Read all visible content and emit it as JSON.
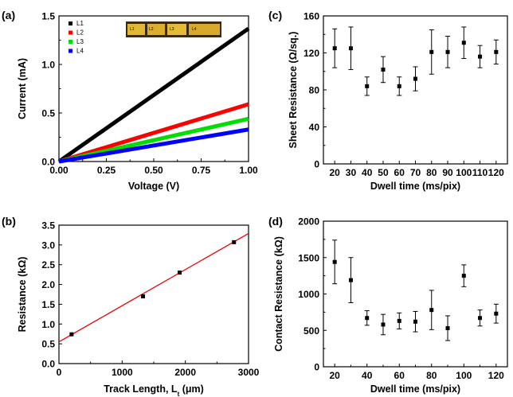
{
  "colors": {
    "L1": "#000000",
    "L2": "#ff0000",
    "L3": "#00dd00",
    "L4": "#0000ff",
    "fit": "#ee0000"
  },
  "panels": {
    "a": "(a)",
    "b": "(b)",
    "c": "(c)",
    "d": "(d)"
  },
  "chart_data": [
    {
      "id": "a",
      "type": "line",
      "xlabel": "Voltage (V)",
      "ylabel": "Current (mA)",
      "xlim": [
        0,
        1
      ],
      "ylim": [
        0,
        1.5
      ],
      "xticks": [
        "0.00",
        "0.25",
        "0.50",
        "0.75",
        "1.00"
      ],
      "yticks": [
        "0.0",
        "0.5",
        "1.0",
        "1.5"
      ],
      "legend_position": "top-left",
      "inset": "photo of four tracks with labels L1, L2, L3, L4",
      "inset_labels": [
        "L1",
        "L2",
        "L3",
        "L4"
      ],
      "series": [
        {
          "name": "L1",
          "x": [
            0,
            1
          ],
          "y": [
            0,
            1.37
          ]
        },
        {
          "name": "L2",
          "x": [
            0,
            1
          ],
          "y": [
            0,
            0.59
          ]
        },
        {
          "name": "L3",
          "x": [
            0,
            1
          ],
          "y": [
            0,
            0.44
          ]
        },
        {
          "name": "L4",
          "x": [
            0,
            1
          ],
          "y": [
            0,
            0.33
          ]
        }
      ]
    },
    {
      "id": "b",
      "type": "scatter",
      "xlabel": "Track Length, L",
      "xlabel_subscript": "t",
      "xlabel_unit": " (μm)",
      "ylabel": "Resistance (kΩ)",
      "xlim": [
        0,
        3000
      ],
      "ylim": [
        0,
        3.5
      ],
      "xticks": [
        "0",
        "1000",
        "2000",
        "3000"
      ],
      "yticks": [
        "0.0",
        "0.5",
        "1.0",
        "1.5",
        "2.0",
        "2.5",
        "3.0",
        "3.5"
      ],
      "points": {
        "x": [
          200,
          1330,
          1910,
          2770
        ],
        "y": [
          0.74,
          1.7,
          2.3,
          3.07
        ]
      },
      "fit": {
        "x": [
          0,
          3000
        ],
        "y": [
          0.55,
          3.29
        ]
      }
    },
    {
      "id": "c",
      "type": "scatter",
      "xlabel": "Dwell time (ms/pix)",
      "ylabel": "Sheet Resistance (Ω/sq.)",
      "xlim": [
        13,
        127
      ],
      "ylim": [
        0,
        160
      ],
      "xticks": [
        "20",
        "30",
        "40",
        "50",
        "60",
        "70",
        "80",
        "90",
        "100",
        "110",
        "120"
      ],
      "yticks": [
        "0",
        "40",
        "80",
        "120",
        "160"
      ],
      "x": [
        20,
        30,
        40,
        50,
        60,
        70,
        80,
        90,
        100,
        110,
        120
      ],
      "y": [
        125,
        125,
        84,
        102,
        84,
        92,
        121,
        121,
        131,
        116,
        121
      ],
      "yerr": [
        21,
        23,
        10,
        14,
        10,
        13,
        24,
        17,
        17,
        12,
        13
      ]
    },
    {
      "id": "d",
      "type": "scatter",
      "xlabel": "Dwell time (ms/pix)",
      "ylabel": "Contact Resistance (kΩ)",
      "xlim": [
        13,
        127
      ],
      "ylim": [
        0,
        2000
      ],
      "xticks": [
        "20",
        "40",
        "60",
        "80",
        "100",
        "120"
      ],
      "yticks": [
        "0",
        "500",
        "1000",
        "1500",
        "2000"
      ],
      "x": [
        20,
        30,
        40,
        50,
        60,
        70,
        80,
        90,
        100,
        110,
        120
      ],
      "y": [
        1440,
        1190,
        670,
        580,
        630,
        620,
        780,
        530,
        1250,
        670,
        730
      ],
      "yerr": [
        300,
        310,
        100,
        140,
        110,
        140,
        270,
        170,
        150,
        110,
        130
      ]
    }
  ]
}
